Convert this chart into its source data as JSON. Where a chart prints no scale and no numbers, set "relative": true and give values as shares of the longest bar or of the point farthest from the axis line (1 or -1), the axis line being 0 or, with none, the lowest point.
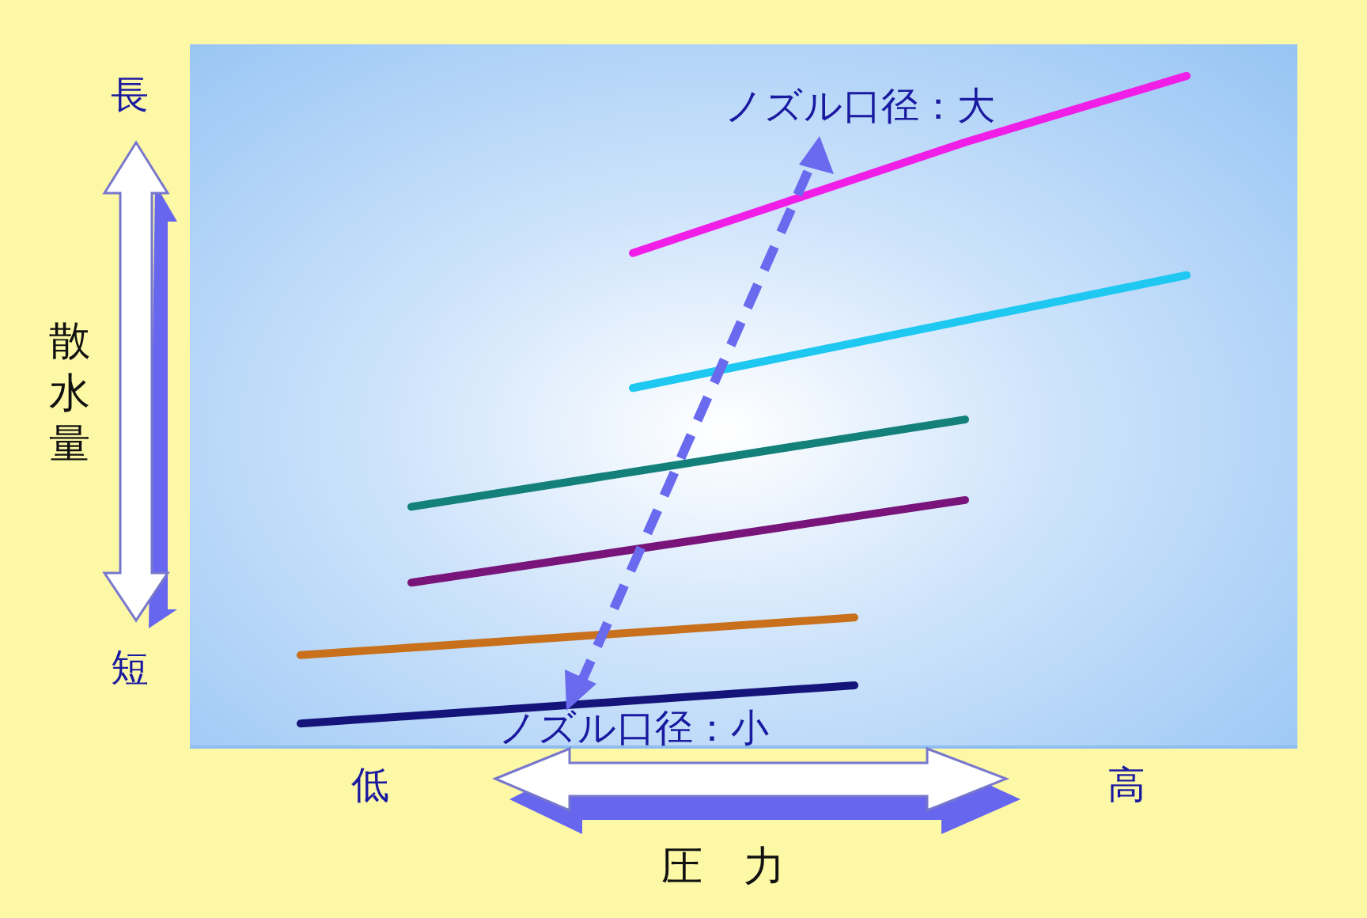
{
  "chart_data": {
    "type": "line",
    "relative": true,
    "xlabel": "圧　力",
    "ylabel": "散水量",
    "legend": false,
    "marker": "none",
    "line_style": "solid",
    "categories": [
      null,
      null,
      null,
      null,
      null,
      null,
      null,
      null,
      null
    ],
    "annotations": [
      "長",
      "短",
      "低",
      "高",
      "ノズル口径：大",
      "ノズル口径：小"
    ],
    "series": [
      {
        "color": "#14147a",
        "values": [
          0.035,
          null,
          null,
          null,
          null,
          0.092,
          null,
          null,
          null
        ]
      },
      {
        "color": "#c8701c",
        "values": [
          0.137,
          null,
          null,
          null,
          null,
          0.193,
          null,
          null,
          null
        ]
      },
      {
        "color": "#78147a",
        "values": [
          null,
          0.245,
          null,
          null,
          null,
          null,
          0.368,
          null,
          null
        ]
      },
      {
        "color": "#14807a",
        "values": [
          null,
          0.358,
          null,
          null,
          null,
          null,
          0.488,
          null,
          null
        ]
      },
      {
        "color": "#1ec8f0",
        "values": [
          null,
          null,
          null,
          0.535,
          null,
          null,
          null,
          null,
          0.703
        ]
      },
      {
        "color": "#f01ee6",
        "values": [
          null,
          null,
          null,
          0.736,
          null,
          null,
          0.901,
          null,
          1
        ]
      }
    ]
  }
}
